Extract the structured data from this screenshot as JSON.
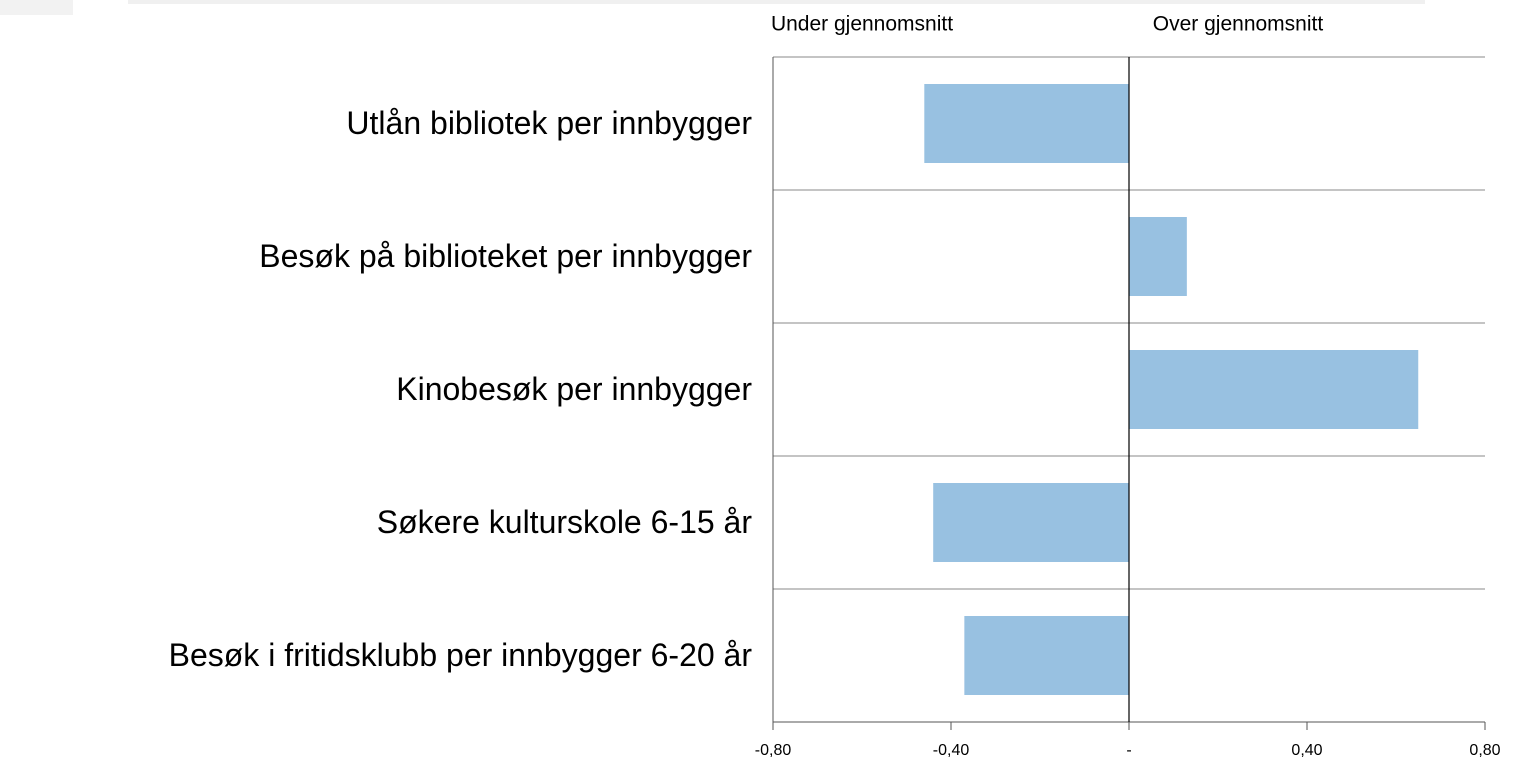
{
  "chart_data": {
    "type": "hbar",
    "annotations": [
      "Under gjennomsnitt",
      "Over gjennomsnitt"
    ],
    "categories": [
      "Utlån bibliotek per innbygger",
      "Besøk på biblioteket per innbygger",
      "Kinobesøk per innbygger",
      "Søkere kulturskole 6-15 år",
      "Besøk i fritidsklubb per innbygger 6-20 år"
    ],
    "values": [
      -0.46,
      0.13,
      0.65,
      -0.44,
      -0.37
    ],
    "color": "#98c1e1",
    "xlim": [
      -0.8,
      0.8
    ],
    "xticks": [
      {
        "value": -0.8,
        "label": "-0,80"
      },
      {
        "value": -0.4,
        "label": "-0,40"
      },
      {
        "value": 0,
        "label": "-"
      },
      {
        "value": 0.4,
        "label": "0,40"
      },
      {
        "value": 0.8,
        "label": "0,80"
      }
    ]
  }
}
